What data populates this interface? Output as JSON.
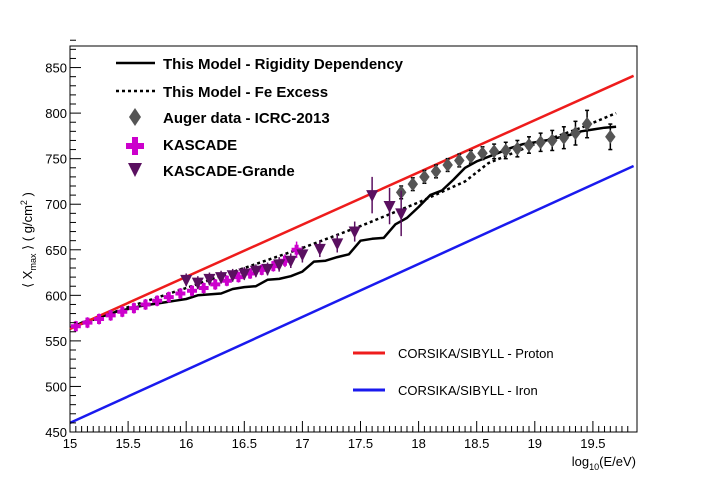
{
  "chart_data": {
    "type": "line",
    "xlabel": "log10(E/eV)",
    "ylabel": "⟨ Xmax ⟩ ( g/cm2 )",
    "xlim": [
      15.0,
      19.85
    ],
    "ylim": [
      450,
      880
    ],
    "xticks": [
      "15",
      "15.5",
      "16",
      "16.5",
      "17",
      "17.5",
      "18",
      "18.5",
      "19",
      "19.5"
    ],
    "yticks": [
      "450",
      "500",
      "550",
      "600",
      "650",
      "700",
      "750",
      "800",
      "850"
    ],
    "colors": {
      "proton": "#ee1c1c",
      "iron": "#1a1aee",
      "rigidity": "#000000",
      "fe_excess": "#000000",
      "auger": "#555555",
      "kascade": "#cc00cc",
      "kascade_grande": "#5a1060"
    },
    "series": [
      {
        "name": "This Model - Rigidity Dependency",
        "style": "solid",
        "points": [
          [
            15.0,
            564
          ],
          [
            15.1,
            570
          ],
          [
            15.2,
            574
          ],
          [
            15.3,
            578
          ],
          [
            15.4,
            582
          ],
          [
            15.5,
            585
          ],
          [
            15.6,
            588
          ],
          [
            15.7,
            590
          ],
          [
            15.8,
            592
          ],
          [
            15.9,
            594
          ],
          [
            16.0,
            596
          ],
          [
            16.1,
            600
          ],
          [
            16.2,
            601
          ],
          [
            16.3,
            602
          ],
          [
            16.4,
            607
          ],
          [
            16.5,
            609
          ],
          [
            16.6,
            610
          ],
          [
            16.7,
            617
          ],
          [
            16.8,
            618
          ],
          [
            16.9,
            621
          ],
          [
            17.0,
            626
          ],
          [
            17.1,
            637
          ],
          [
            17.2,
            638
          ],
          [
            17.3,
            642
          ],
          [
            17.4,
            645
          ],
          [
            17.5,
            660
          ],
          [
            17.6,
            662
          ],
          [
            17.7,
            663
          ],
          [
            17.8,
            678
          ],
          [
            17.9,
            685
          ],
          [
            18.0,
            697
          ],
          [
            18.1,
            710
          ],
          [
            18.2,
            715
          ],
          [
            18.3,
            727
          ],
          [
            18.4,
            740
          ],
          [
            18.5,
            747
          ],
          [
            18.6,
            752
          ],
          [
            18.7,
            757
          ],
          [
            18.8,
            762
          ],
          [
            18.9,
            766
          ],
          [
            19.0,
            768
          ],
          [
            19.1,
            770
          ],
          [
            19.2,
            773
          ],
          [
            19.3,
            776
          ],
          [
            19.4,
            780
          ],
          [
            19.5,
            782
          ],
          [
            19.6,
            784
          ],
          [
            19.7,
            785
          ]
        ]
      },
      {
        "name": "This Model - Fe Excess",
        "style": "dotted",
        "points": [
          [
            15.0,
            564
          ],
          [
            15.5,
            587
          ],
          [
            16.0,
            608
          ],
          [
            16.5,
            630
          ],
          [
            17.0,
            652
          ],
          [
            17.5,
            676
          ],
          [
            18.0,
            702
          ],
          [
            18.4,
            725
          ],
          [
            18.6,
            745
          ],
          [
            19.0,
            766
          ],
          [
            19.4,
            784
          ],
          [
            19.7,
            800
          ]
        ]
      },
      {
        "name": "CORSIKA/SIBYLL - Proton",
        "style": "solid",
        "points": [
          [
            15.0,
            563
          ],
          [
            19.85,
            841
          ]
        ]
      },
      {
        "name": "CORSIKA/SIBYLL - Iron",
        "style": "solid",
        "points": [
          [
            15.0,
            460
          ],
          [
            19.85,
            742
          ]
        ]
      },
      {
        "name": "Auger data - ICRC-2013",
        "marker": "diamond",
        "points": [
          [
            17.85,
            713,
            7
          ],
          [
            17.95,
            722,
            7
          ],
          [
            18.05,
            730,
            7
          ],
          [
            18.15,
            736,
            7
          ],
          [
            18.25,
            743,
            7
          ],
          [
            18.35,
            748,
            7
          ],
          [
            18.45,
            752,
            7
          ],
          [
            18.55,
            756,
            7
          ],
          [
            18.65,
            758,
            8
          ],
          [
            18.75,
            759,
            9
          ],
          [
            18.85,
            761,
            9
          ],
          [
            18.95,
            765,
            9
          ],
          [
            19.05,
            768,
            10
          ],
          [
            19.15,
            770,
            11
          ],
          [
            19.25,
            773,
            12
          ],
          [
            19.35,
            778,
            13
          ],
          [
            19.45,
            788,
            15
          ],
          [
            19.65,
            774,
            14
          ]
        ]
      },
      {
        "name": "KASCADE",
        "marker": "cross",
        "points": [
          [
            15.05,
            566,
            6
          ],
          [
            15.15,
            570,
            6
          ],
          [
            15.25,
            574,
            6
          ],
          [
            15.35,
            578,
            6
          ],
          [
            15.45,
            582,
            6
          ],
          [
            15.55,
            586,
            6
          ],
          [
            15.65,
            590,
            6
          ],
          [
            15.75,
            594,
            6
          ],
          [
            15.85,
            598,
            6
          ],
          [
            15.95,
            602,
            6
          ],
          [
            16.05,
            605,
            6
          ],
          [
            16.15,
            608,
            6
          ],
          [
            16.25,
            612,
            6
          ],
          [
            16.35,
            616,
            6
          ],
          [
            16.45,
            620,
            6
          ],
          [
            16.55,
            624,
            6
          ],
          [
            16.65,
            628,
            6
          ],
          [
            16.75,
            632,
            6
          ],
          [
            16.85,
            638,
            7
          ],
          [
            16.95,
            650,
            9
          ]
        ]
      },
      {
        "name": "KASCADE-Grande",
        "marker": "triangle-down",
        "points": [
          [
            16.0,
            617,
            7
          ],
          [
            16.1,
            614,
            7
          ],
          [
            16.2,
            618,
            7
          ],
          [
            16.3,
            620,
            7
          ],
          [
            16.4,
            622,
            7
          ],
          [
            16.5,
            624,
            7
          ],
          [
            16.6,
            627,
            7
          ],
          [
            16.7,
            629,
            7
          ],
          [
            16.8,
            634,
            8
          ],
          [
            16.9,
            638,
            8
          ],
          [
            17.0,
            645,
            9
          ],
          [
            17.15,
            651,
            9
          ],
          [
            17.3,
            657,
            10
          ],
          [
            17.45,
            670,
            11
          ],
          [
            17.6,
            710,
            20
          ],
          [
            17.75,
            698,
            20
          ],
          [
            17.85,
            690,
            25
          ]
        ]
      }
    ],
    "legend_top": [
      {
        "label": "This Model - Rigidity Dependency",
        "symbol": "solid"
      },
      {
        "label": "This Model - Fe Excess",
        "symbol": "dotted"
      },
      {
        "label": "Auger data - ICRC-2013",
        "symbol": "diamond"
      },
      {
        "label": "KASCADE",
        "symbol": "cross"
      },
      {
        "label": "KASCADE-Grande",
        "symbol": "triangle-down"
      }
    ],
    "legend_bottom": [
      {
        "label": "CORSIKA/SIBYLL - Proton",
        "symbol": "red-line"
      },
      {
        "label": "CORSIKA/SIBYLL - Iron",
        "symbol": "blue-line"
      }
    ]
  }
}
